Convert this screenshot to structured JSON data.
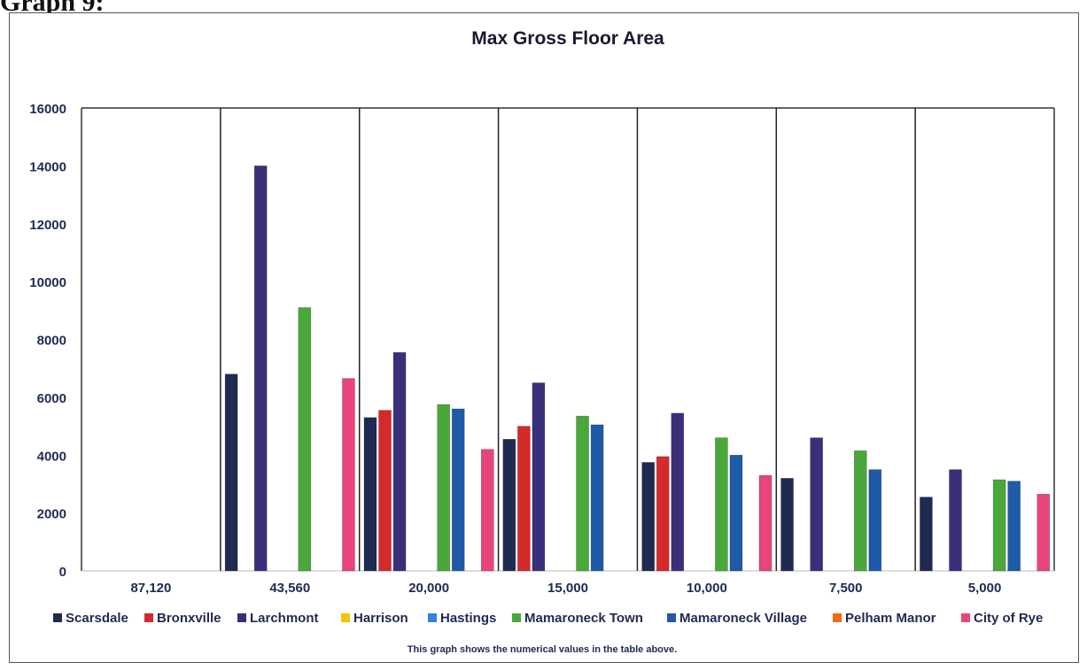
{
  "page": {
    "heading": "Graph 9:"
  },
  "chart_data": {
    "type": "bar",
    "title": "Max Gross Floor Area",
    "xlabel": "",
    "ylabel": "",
    "ylim": [
      0,
      16000
    ],
    "yticks": [
      0,
      2000,
      4000,
      6000,
      8000,
      10000,
      12000,
      14000,
      16000
    ],
    "categories": [
      "87,120",
      "43,560",
      "20,000",
      "15,000",
      "10,000",
      "7,500",
      "5,000"
    ],
    "legend_position": "bottom",
    "footnote": "This graph shows the numerical values in the table above.",
    "series": [
      {
        "name": "Scarsdale",
        "color": "#1f2a52",
        "values": [
          0,
          6800,
          5300,
          4550,
          3750,
          3200,
          2550
        ]
      },
      {
        "name": "Bronxville",
        "color": "#d42a2a",
        "values": [
          0,
          0,
          5550,
          5000,
          3950,
          0,
          0
        ]
      },
      {
        "name": "Larchmont",
        "color": "#3a2f7a",
        "values": [
          0,
          14000,
          7550,
          6500,
          5450,
          4600,
          3500
        ]
      },
      {
        "name": "Harrison",
        "color": "#f2c40c",
        "values": [
          0,
          0,
          0,
          0,
          0,
          0,
          0
        ]
      },
      {
        "name": "Hastings",
        "color": "#2f86d8",
        "values": [
          0,
          0,
          0,
          0,
          0,
          0,
          0
        ]
      },
      {
        "name": "Mamaroneck Town",
        "color": "#4aa83a",
        "values": [
          0,
          9100,
          5750,
          5350,
          4600,
          4150,
          3150
        ]
      },
      {
        "name": "Mamaroneck Village",
        "color": "#1f5aa8",
        "values": [
          0,
          0,
          5600,
          5050,
          4000,
          3500,
          3100
        ]
      },
      {
        "name": "Pelham Manor",
        "color": "#f06a1a",
        "values": [
          0,
          0,
          0,
          0,
          0,
          0,
          0
        ]
      },
      {
        "name": "City of Rye",
        "color": "#e8457a",
        "values": [
          0,
          6650,
          4200,
          0,
          3300,
          0,
          2650
        ]
      }
    ]
  }
}
